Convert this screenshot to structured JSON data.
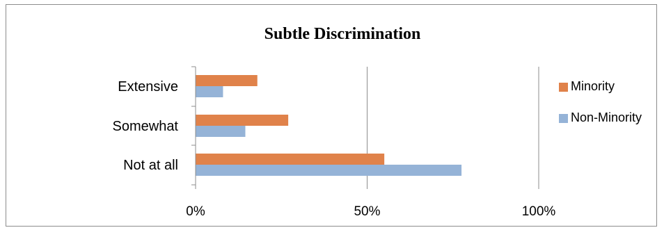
{
  "chart_data": {
    "type": "bar",
    "orientation": "horizontal",
    "title": "Subtle Discrimination",
    "xlabel": "",
    "ylabel": "",
    "categories": [
      "Extensive",
      "Somewhat",
      "Not at all"
    ],
    "series": [
      {
        "name": "Minority",
        "color": "#E0824A",
        "values": [
          18,
          27,
          55
        ]
      },
      {
        "name": "Non-Minority",
        "color": "#95B3D7",
        "values": [
          8,
          14.5,
          77.5
        ]
      }
    ],
    "xlim": [
      0,
      100
    ],
    "xticks": [
      0,
      50,
      100
    ],
    "xtick_labels": [
      "0%",
      "50%",
      "100%"
    ],
    "grid": true,
    "legend_position": "right"
  }
}
